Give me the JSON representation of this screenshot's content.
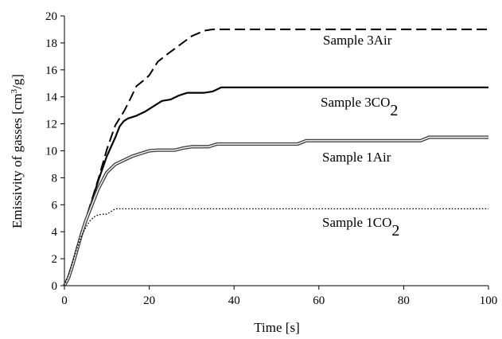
{
  "chart_data": {
    "type": "line",
    "xlabel": "Time [s]",
    "ylabel_prefix": "Emissivity of gasses [cm",
    "ylabel_sup": "3",
    "ylabel_suffix": "/g]",
    "xlim": [
      0,
      100
    ],
    "ylim": [
      0,
      20
    ],
    "x_ticks": [
      0,
      20,
      40,
      60,
      80,
      100
    ],
    "y_ticks": [
      0,
      2,
      4,
      6,
      8,
      10,
      12,
      14,
      16,
      18,
      20
    ],
    "grid": false,
    "legend": "inline labels near curves",
    "series": [
      {
        "name": "Sample 3Air",
        "label_main": "Sample 3Air",
        "label_sub": "",
        "style": "dashed",
        "x": [
          0,
          1,
          2,
          3,
          4,
          5,
          6,
          8,
          10,
          12,
          14,
          15,
          17,
          19,
          20,
          22,
          24,
          27,
          30,
          33,
          35,
          40,
          50,
          60,
          70,
          80,
          90,
          100
        ],
        "y": [
          0,
          0.6,
          1.6,
          2.7,
          3.8,
          4.9,
          5.9,
          7.9,
          10.1,
          11.9,
          12.9,
          13.5,
          14.8,
          15.3,
          15.6,
          16.6,
          17.1,
          17.8,
          18.5,
          18.9,
          19.0,
          19.0,
          19.0,
          19.0,
          19.0,
          19.0,
          19.0,
          19.0
        ]
      },
      {
        "name": "Sample 3CO2",
        "label_main": "Sample 3CO",
        "label_sub": "2",
        "style": "solid",
        "x": [
          0,
          1,
          2,
          3,
          4,
          5,
          6,
          8,
          10,
          12,
          13,
          14,
          15,
          17,
          19,
          21,
          23,
          25,
          27,
          29,
          31,
          33,
          35,
          37,
          40,
          50,
          60,
          70,
          80,
          90,
          100
        ],
        "y": [
          0,
          0.5,
          1.5,
          2.6,
          3.7,
          4.8,
          5.8,
          7.8,
          9.6,
          11.0,
          11.8,
          12.2,
          12.4,
          12.6,
          12.9,
          13.3,
          13.7,
          13.8,
          14.1,
          14.3,
          14.3,
          14.3,
          14.4,
          14.7,
          14.7,
          14.7,
          14.7,
          14.7,
          14.7,
          14.7,
          14.7
        ]
      },
      {
        "name": "Sample 1Air",
        "label_main": "Sample 1Air",
        "label_sub": "",
        "style": "double",
        "x": [
          0,
          1,
          2,
          3,
          4,
          5,
          6,
          7,
          8,
          9,
          10,
          12,
          14,
          16,
          18,
          20,
          22,
          24,
          26,
          28,
          30,
          32,
          34,
          36,
          40,
          50,
          55,
          57,
          60,
          70,
          80,
          84,
          86,
          90,
          100
        ],
        "y": [
          0,
          0.6,
          1.6,
          2.7,
          3.8,
          4.8,
          5.6,
          6.4,
          7.2,
          7.8,
          8.4,
          9.0,
          9.3,
          9.6,
          9.8,
          10.0,
          10.05,
          10.05,
          10.05,
          10.2,
          10.3,
          10.3,
          10.3,
          10.5,
          10.5,
          10.5,
          10.5,
          10.75,
          10.75,
          10.75,
          10.75,
          10.75,
          11.0,
          11.0,
          11.0
        ]
      },
      {
        "name": "Sample 1CO2",
        "label_main": "Sample 1CO",
        "label_sub": "2",
        "style": "dotted",
        "x": [
          0,
          1,
          2,
          3,
          4,
          5,
          6,
          7,
          8,
          9,
          10,
          11,
          12,
          14,
          20,
          40,
          60,
          80,
          100
        ],
        "y": [
          0,
          0.8,
          1.8,
          2.8,
          3.7,
          4.3,
          4.8,
          5.1,
          5.25,
          5.3,
          5.3,
          5.5,
          5.7,
          5.7,
          5.7,
          5.7,
          5.7,
          5.7,
          5.7
        ]
      }
    ]
  }
}
